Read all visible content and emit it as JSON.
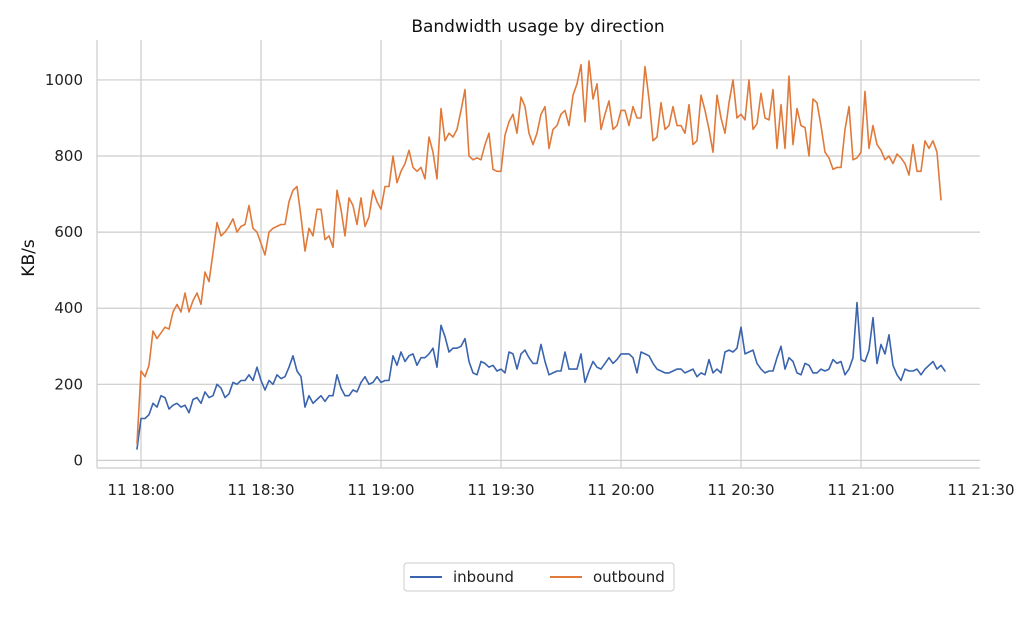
{
  "chart_data": {
    "type": "line",
    "title": "Bandwidth usage by direction",
    "xlabel": "",
    "ylabel": "KB/s",
    "x_tick_labels": [
      "11 18:00",
      "11 18:30",
      "11 19:00",
      "11 19:30",
      "11 20:00",
      "11 20:30",
      "11 21:00",
      "11 21:30"
    ],
    "y_ticks": [
      0,
      200,
      400,
      600,
      800,
      1000
    ],
    "xlim": [
      "11 17:49",
      "11 21:30"
    ],
    "ylim": [
      -20,
      1105
    ],
    "grid": true,
    "legend_position": "bottom-center",
    "x_start": "11 17:59",
    "x_step_minutes": 1,
    "series": [
      {
        "name": "inbound",
        "color": "#3a64ad",
        "values": [
          30,
          110,
          110,
          120,
          150,
          140,
          170,
          165,
          135,
          145,
          150,
          140,
          145,
          125,
          160,
          165,
          150,
          180,
          165,
          170,
          200,
          190,
          165,
          175,
          205,
          200,
          210,
          210,
          225,
          210,
          245,
          210,
          185,
          210,
          200,
          225,
          215,
          220,
          245,
          275,
          235,
          220,
          140,
          170,
          150,
          160,
          170,
          155,
          170,
          170,
          225,
          190,
          170,
          170,
          185,
          180,
          205,
          220,
          200,
          205,
          220,
          205,
          210,
          210,
          275,
          250,
          285,
          260,
          275,
          280,
          250,
          270,
          270,
          280,
          295,
          245,
          355,
          325,
          285,
          295,
          295,
          300,
          320,
          260,
          230,
          225,
          260,
          255,
          245,
          250,
          235,
          240,
          230,
          285,
          280,
          240,
          280,
          290,
          270,
          255,
          255,
          305,
          260,
          225,
          230,
          235,
          235,
          285,
          240,
          240,
          240,
          280,
          205,
          235,
          260,
          245,
          240,
          255,
          270,
          255,
          265,
          280,
          280,
          280,
          270,
          230,
          285,
          280,
          275,
          255,
          240,
          235,
          230,
          230,
          235,
          240,
          240,
          230,
          235,
          240,
          220,
          230,
          225,
          265,
          230,
          240,
          230,
          285,
          290,
          285,
          295,
          350,
          280,
          285,
          290,
          255,
          240,
          230,
          235,
          235,
          270,
          300,
          240,
          270,
          260,
          230,
          225,
          255,
          250,
          230,
          230,
          240,
          235,
          240,
          265,
          255,
          260,
          225,
          240,
          270,
          415,
          265,
          260,
          290,
          375,
          255,
          305,
          280,
          330,
          250,
          225,
          210,
          240,
          235,
          235,
          240,
          225,
          240,
          250,
          260,
          240,
          250,
          235
        ],
        "chart_height_note": ""
      },
      {
        "name": "outbound",
        "color": "#e07a3b",
        "values": [
          45,
          235,
          220,
          250,
          340,
          320,
          335,
          350,
          345,
          390,
          410,
          390,
          440,
          390,
          420,
          440,
          410,
          495,
          470,
          545,
          625,
          590,
          600,
          615,
          635,
          600,
          615,
          620,
          670,
          610,
          600,
          570,
          540,
          600,
          610,
          615,
          620,
          620,
          680,
          710,
          720,
          640,
          550,
          610,
          590,
          660,
          660,
          580,
          590,
          560,
          710,
          660,
          590,
          690,
          670,
          620,
          690,
          615,
          640,
          710,
          680,
          660,
          720,
          720,
          800,
          730,
          760,
          780,
          815,
          770,
          760,
          770,
          740,
          850,
          810,
          740,
          925,
          840,
          860,
          850,
          870,
          920,
          975,
          800,
          790,
          795,
          790,
          830,
          860,
          765,
          760,
          760,
          855,
          890,
          910,
          860,
          955,
          930,
          860,
          830,
          860,
          910,
          930,
          820,
          870,
          880,
          910,
          920,
          880,
          960,
          990,
          1040,
          890,
          1050,
          950,
          990,
          870,
          910,
          945,
          870,
          880,
          920,
          920,
          880,
          930,
          900,
          900,
          1035,
          950,
          840,
          850,
          940,
          870,
          880,
          930,
          880,
          880,
          860,
          935,
          830,
          840,
          960,
          920,
          870,
          810,
          960,
          900,
          860,
          940,
          1000,
          900,
          910,
          895,
          1000,
          870,
          885,
          965,
          900,
          895,
          975,
          820,
          935,
          820,
          1010,
          830,
          925,
          880,
          875,
          800,
          950,
          940,
          880,
          810,
          795,
          765,
          770,
          770,
          870,
          930,
          790,
          795,
          810,
          970,
          820,
          880,
          830,
          815,
          790,
          800,
          780,
          805,
          795,
          780,
          750,
          830,
          760,
          760,
          840,
          820,
          840,
          810,
          685
        ]
      }
    ]
  }
}
